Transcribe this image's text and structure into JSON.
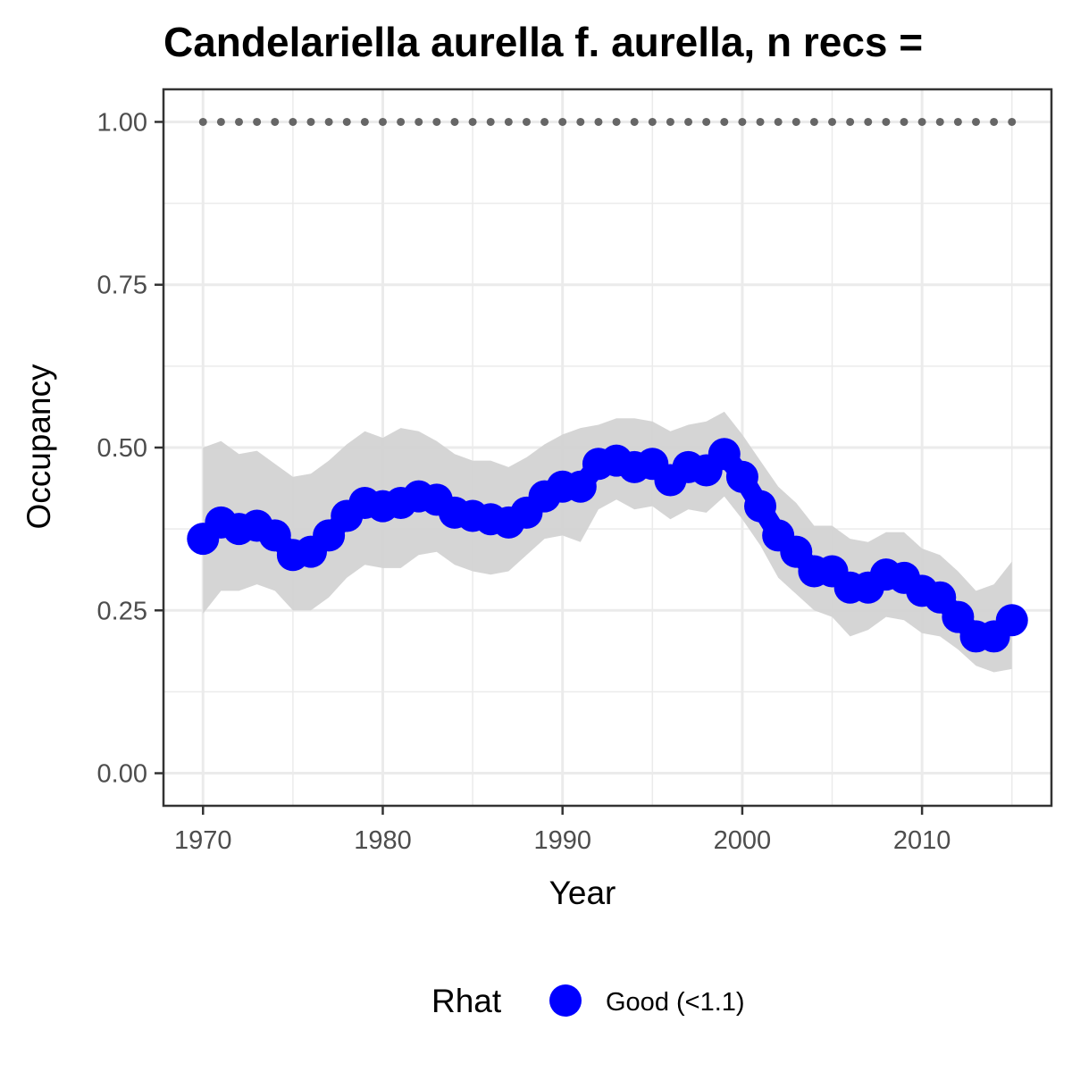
{
  "chart_data": {
    "type": "line",
    "title": "Candelariella aurella f. aurella, n recs =",
    "xlabel": "Year",
    "ylabel": "Occupancy",
    "xlim": [
      1967.8,
      2017.2
    ],
    "ylim": [
      -0.05,
      1.05
    ],
    "x_ticks": [
      1970,
      1980,
      1990,
      2000,
      2010
    ],
    "x_tick_labels": [
      "1970",
      "1980",
      "1990",
      "2000",
      "2010"
    ],
    "y_ticks": [
      0,
      0.25,
      0.5,
      0.75,
      1.0
    ],
    "y_tick_labels": [
      "0.00",
      "0.25",
      "0.50",
      "0.75",
      "1.00"
    ],
    "grid": true,
    "legend": {
      "title": "Rhat",
      "position": "bottom",
      "entries": [
        {
          "label": "Good (<1.1)",
          "color": "#0000ff"
        }
      ]
    },
    "colors": {
      "series": "#0000ff",
      "ribbon": "#d3d3d3",
      "reference": "#666666",
      "grid": "#ebebeb",
      "panel_border": "#333333"
    },
    "x": [
      1970,
      1971,
      1972,
      1973,
      1974,
      1975,
      1976,
      1977,
      1978,
      1979,
      1980,
      1981,
      1982,
      1983,
      1984,
      1985,
      1986,
      1987,
      1988,
      1989,
      1990,
      1991,
      1992,
      1993,
      1994,
      1995,
      1996,
      1997,
      1998,
      1999,
      2000,
      2001,
      2002,
      2003,
      2004,
      2005,
      2006,
      2007,
      2008,
      2009,
      2010,
      2011,
      2012,
      2013,
      2014,
      2015
    ],
    "series": [
      {
        "values": [
          0.36,
          0.385,
          0.375,
          0.38,
          0.365,
          0.335,
          0.34,
          0.365,
          0.395,
          0.415,
          0.41,
          0.415,
          0.425,
          0.42,
          0.4,
          0.395,
          0.39,
          0.385,
          0.4,
          0.425,
          0.44,
          0.44,
          0.475,
          0.48,
          0.47,
          0.475,
          0.45,
          0.47,
          0.465,
          0.49,
          0.455,
          0.41,
          0.365,
          0.34,
          0.31,
          0.31,
          0.285,
          0.285,
          0.305,
          0.3,
          0.28,
          0.27,
          0.24,
          0.21,
          0.21,
          0.235
        ],
        "lower": [
          0.245,
          0.28,
          0.28,
          0.29,
          0.28,
          0.25,
          0.25,
          0.27,
          0.3,
          0.32,
          0.315,
          0.315,
          0.335,
          0.34,
          0.32,
          0.31,
          0.305,
          0.31,
          0.335,
          0.36,
          0.365,
          0.355,
          0.405,
          0.42,
          0.405,
          0.41,
          0.39,
          0.405,
          0.4,
          0.425,
          0.39,
          0.35,
          0.3,
          0.275,
          0.25,
          0.24,
          0.21,
          0.22,
          0.24,
          0.235,
          0.215,
          0.21,
          0.19,
          0.165,
          0.155,
          0.16
        ],
        "upper": [
          0.5,
          0.51,
          0.49,
          0.495,
          0.475,
          0.455,
          0.46,
          0.48,
          0.505,
          0.525,
          0.515,
          0.53,
          0.525,
          0.51,
          0.49,
          0.48,
          0.48,
          0.47,
          0.485,
          0.505,
          0.52,
          0.53,
          0.535,
          0.545,
          0.545,
          0.54,
          0.525,
          0.535,
          0.54,
          0.555,
          0.52,
          0.48,
          0.44,
          0.415,
          0.38,
          0.38,
          0.36,
          0.355,
          0.37,
          0.37,
          0.345,
          0.335,
          0.31,
          0.28,
          0.29,
          0.325
        ]
      }
    ],
    "reference_line": {
      "y": 1.0
    }
  }
}
